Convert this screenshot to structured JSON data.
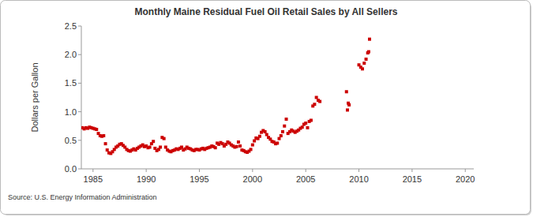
{
  "chart_data": {
    "type": "scatter",
    "title": "Monthly Maine Residual Fuel Oil Retail Sales by All Sellers",
    "y_label": "Dollars per Gallon",
    "source": "Source: U.S. Energy Information Administration",
    "xlim": [
      1983.9,
      2020.8
    ],
    "xticks": [
      1985,
      1990,
      1995,
      2000,
      2005,
      2010,
      2015,
      2020
    ],
    "ylim": [
      0,
      2.5
    ],
    "yticks": [
      {
        "value": 0,
        "label": "0.0"
      },
      0.5,
      {
        "value": 1,
        "label": "1.0"
      },
      1.5,
      {
        "value": 2,
        "label": "2.0"
      },
      2.5
    ],
    "grid": false,
    "marker": "square",
    "color": "#cc0000",
    "x": [
      1984,
      1984.17,
      1984.33,
      1984.5,
      1984.67,
      1984.83,
      1985,
      1985.17,
      1985.33,
      1985.5,
      1985.67,
      1985.83,
      1986,
      1986.17,
      1986.33,
      1986.5,
      1986.67,
      1986.83,
      1987,
      1987.17,
      1987.33,
      1987.5,
      1987.67,
      1987.83,
      1988,
      1988.17,
      1988.33,
      1988.5,
      1988.67,
      1988.83,
      1989,
      1989.17,
      1989.33,
      1989.5,
      1989.67,
      1989.83,
      1990,
      1990.17,
      1990.33,
      1990.5,
      1990.67,
      1990.83,
      1991,
      1991.17,
      1991.33,
      1991.5,
      1991.67,
      1991.83,
      1992,
      1992.17,
      1992.33,
      1992.5,
      1992.67,
      1992.83,
      1993,
      1993.17,
      1993.33,
      1993.5,
      1993.67,
      1993.83,
      1994,
      1994.17,
      1994.33,
      1994.5,
      1994.67,
      1994.83,
      1995,
      1995.17,
      1995.33,
      1995.5,
      1995.67,
      1995.83,
      1996,
      1996.17,
      1996.33,
      1996.5,
      1996.67,
      1996.83,
      1997,
      1997.17,
      1997.33,
      1997.5,
      1997.67,
      1997.83,
      1998,
      1998.17,
      1998.33,
      1998.5,
      1998.67,
      1998.83,
      1999,
      1999.17,
      1999.33,
      1999.5,
      1999.67,
      1999.83,
      2000,
      2000.17,
      2000.33,
      2000.5,
      2000.67,
      2000.83,
      2001,
      2001.17,
      2001.33,
      2001.5,
      2001.67,
      2001.83,
      2002,
      2002.17,
      2002.33,
      2002.5,
      2002.67,
      2002.83,
      2003,
      2003.17,
      2003.33,
      2003.5,
      2003.67,
      2003.83,
      2004,
      2004.17,
      2004.33,
      2004.5,
      2004.67,
      2004.83,
      2005,
      2005.17,
      2005.33,
      2005.5,
      2005.67,
      2005.83,
      2006,
      2006.17,
      2006.33,
      2008.83,
      2008.92,
      2009,
      2009.08,
      2010,
      2010.17,
      2010.33,
      2010.5,
      2010.67,
      2010.83,
      2010.92,
      2011
    ],
    "values": [
      0.72,
      0.7,
      0.72,
      0.71,
      0.73,
      0.72,
      0.71,
      0.7,
      0.69,
      0.62,
      0.58,
      0.57,
      0.58,
      0.44,
      0.33,
      0.28,
      0.27,
      0.3,
      0.34,
      0.38,
      0.4,
      0.43,
      0.44,
      0.41,
      0.38,
      0.34,
      0.32,
      0.31,
      0.33,
      0.35,
      0.33,
      0.36,
      0.38,
      0.4,
      0.42,
      0.39,
      0.4,
      0.37,
      0.38,
      0.44,
      0.48,
      0.36,
      0.32,
      0.34,
      0.38,
      0.55,
      0.53,
      0.38,
      0.33,
      0.31,
      0.3,
      0.32,
      0.33,
      0.35,
      0.34,
      0.36,
      0.38,
      0.33,
      0.35,
      0.38,
      0.36,
      0.35,
      0.33,
      0.32,
      0.34,
      0.34,
      0.33,
      0.35,
      0.36,
      0.34,
      0.36,
      0.37,
      0.38,
      0.4,
      0.39,
      0.37,
      0.45,
      0.43,
      0.46,
      0.44,
      0.4,
      0.43,
      0.47,
      0.45,
      0.42,
      0.4,
      0.38,
      0.39,
      0.47,
      0.4,
      0.33,
      0.32,
      0.3,
      0.29,
      0.31,
      0.34,
      0.42,
      0.49,
      0.54,
      0.53,
      0.57,
      0.64,
      0.67,
      0.65,
      0.6,
      0.55,
      0.52,
      0.48,
      0.47,
      0.44,
      0.45,
      0.53,
      0.58,
      0.65,
      0.75,
      0.87,
      0.62,
      0.65,
      0.68,
      0.66,
      0.64,
      0.66,
      0.68,
      0.71,
      0.73,
      0.78,
      0.8,
      0.72,
      0.83,
      0.85,
      1.1,
      1.13,
      1.25,
      1.2,
      1.18,
      1.35,
      1.03,
      1.15,
      1.12,
      1.82,
      1.78,
      1.75,
      1.85,
      1.92,
      2.03,
      2.05,
      2.27
    ]
  }
}
